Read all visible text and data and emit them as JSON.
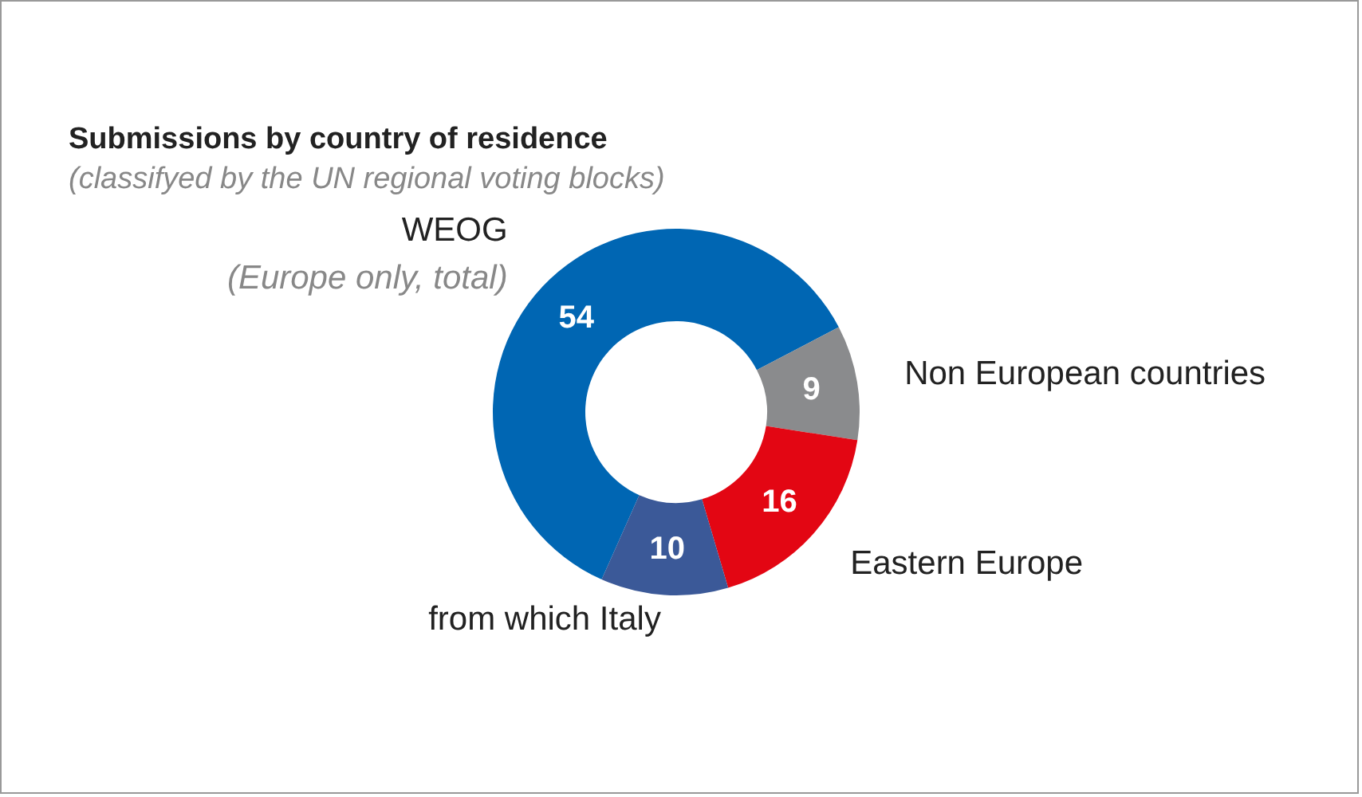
{
  "chart_data": {
    "type": "donut",
    "title": "Submissions by country of residence",
    "subtitle": "(classifyed by the UN regional voting blocks)",
    "categories": [
      "WEOG",
      "Non European countries",
      "Eastern Europe",
      "from which Italy"
    ],
    "values": [
      54,
      9,
      16,
      10
    ],
    "colors": [
      "#0066b3",
      "#8a8b8d",
      "#e30613",
      "#3b5998"
    ],
    "data_labels": true,
    "annotations": [
      "(Europe only, total)"
    ]
  }
}
